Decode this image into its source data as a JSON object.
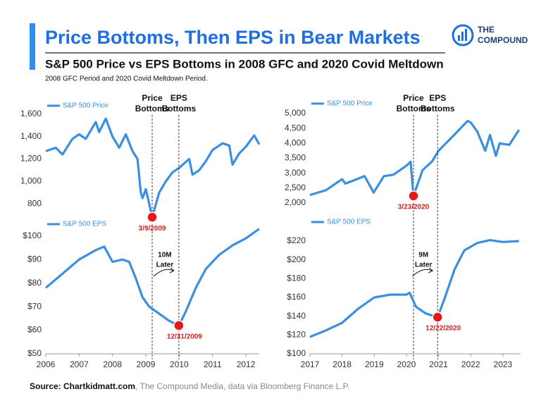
{
  "header": {
    "title": "Price Bottoms, Then EPS in Bear Markets",
    "subtitle": "S&P 500 Price vs EPS Bottoms in 2008 GFC and 2020 Covid Meltdown",
    "note": "2008 GFC Period and 2020 Covid Meltdown Period.",
    "logo": [
      "THE",
      "COMPOUND"
    ]
  },
  "source": {
    "bold": "Source: Chartkidmatt.com",
    "rest": ", The Compound Media, data via Bloomberg Finance L.P."
  },
  "chart_data": [
    {
      "type": "line",
      "x": [
        2006.0,
        2006.3,
        2006.5,
        2006.8,
        2007.0,
        2007.2,
        2007.5,
        2007.6,
        2007.8,
        2008.0,
        2008.2,
        2008.4,
        2008.6,
        2008.75,
        2008.85,
        2008.9,
        2009.0,
        2009.1,
        2009.19,
        2009.4,
        2009.6,
        2009.8,
        2010.0,
        2010.3,
        2010.4,
        2010.6,
        2010.8,
        2011.0,
        2011.3,
        2011.5,
        2011.6,
        2011.8,
        2012.0,
        2012.25,
        2012.4
      ],
      "series": [
        {
          "name": "S&P 500 Price",
          "color": "#3b8fe0",
          "values": [
            1270,
            1300,
            1240,
            1380,
            1420,
            1380,
            1530,
            1440,
            1560,
            1400,
            1300,
            1420,
            1270,
            1200,
            900,
            850,
            930,
            800,
            680,
            900,
            1000,
            1080,
            1120,
            1200,
            1060,
            1100,
            1180,
            1280,
            1340,
            1320,
            1150,
            1250,
            1310,
            1410,
            1330
          ]
        }
      ],
      "xlim": [
        2006,
        2012.4
      ],
      "ylim": [
        700,
        1675
      ],
      "yticks": [
        800,
        {
          "value": 1000,
          "label": "1,000"
        },
        {
          "value": 1200,
          "label": "1,200"
        },
        {
          "value": 1400,
          "label": "1,400"
        },
        {
          "value": 1600,
          "label": "1,600"
        }
      ],
      "marker": {
        "x": 2009.19,
        "y": 680,
        "label": "3/9/2009",
        "title": [
          "Price",
          "Bottoms"
        ]
      }
    },
    {
      "type": "line",
      "x": [
        2006.0,
        2006.5,
        2007.0,
        2007.5,
        2007.75,
        2008.0,
        2008.3,
        2008.5,
        2008.7,
        2008.9,
        2009.1,
        2009.4,
        2009.7,
        2009.99,
        2010.2,
        2010.5,
        2010.8,
        2011.2,
        2011.6,
        2012.0,
        2012.4
      ],
      "series": [
        {
          "name": "S&P 500 EPS",
          "color": "#3b8fe0",
          "values": [
            78,
            84,
            90,
            94,
            95.5,
            89,
            90,
            89,
            82,
            74,
            70,
            67,
            64,
            62,
            68,
            78,
            86,
            92,
            96,
            99,
            103
          ]
        }
      ],
      "xlim": [
        2006,
        2012.4
      ],
      "ylim": [
        50,
        105
      ],
      "xticks": [
        2006,
        2007,
        2008,
        2009,
        2010,
        2011,
        2012
      ],
      "yticks": [
        {
          "value": 50,
          "label": "$50"
        },
        {
          "value": 60,
          "label": "$60"
        },
        {
          "value": 70,
          "label": "$70"
        },
        {
          "value": 80,
          "label": "$80"
        },
        {
          "value": 90,
          "label": "$90"
        },
        {
          "value": 100,
          "label": "$100"
        }
      ],
      "marker": {
        "x": 2009.99,
        "y": 62,
        "label": "12/31/2009",
        "title": [
          "EPS",
          "Bottoms"
        ]
      },
      "note": [
        "10M",
        "Later"
      ]
    },
    {
      "type": "line",
      "x": [
        2017.0,
        2017.5,
        2018.0,
        2018.1,
        2018.7,
        2018.98,
        2019.3,
        2019.6,
        2020.0,
        2020.13,
        2020.22,
        2020.5,
        2020.8,
        2021.0,
        2021.5,
        2021.9,
        2022.0,
        2022.2,
        2022.45,
        2022.6,
        2022.78,
        2022.9,
        2023.2,
        2023.5
      ],
      "series": [
        {
          "name": "S&P 500 Price",
          "color": "#3b8fe0",
          "values": [
            2270,
            2430,
            2800,
            2650,
            2900,
            2350,
            2900,
            2950,
            3250,
            3380,
            2240,
            3100,
            3400,
            3750,
            4300,
            4750,
            4700,
            4400,
            3750,
            4280,
            3580,
            4000,
            3950,
            4450
          ]
        }
      ],
      "xlim": [
        2017,
        2023.55
      ],
      "ylim": [
        1600,
        5260
      ],
      "yticks": [
        {
          "value": 2000,
          "label": "2,000"
        },
        {
          "value": 2500,
          "label": "2,500"
        },
        {
          "value": 3000,
          "label": "3,000"
        },
        {
          "value": 3500,
          "label": "3,500"
        },
        {
          "value": 4000,
          "label": "4,000"
        },
        {
          "value": 4500,
          "label": "4,500"
        },
        {
          "value": 5000,
          "label": "5,000"
        }
      ],
      "marker": {
        "x": 2020.22,
        "y": 2240,
        "label": "3/23/2020",
        "title": [
          "Price",
          "Bottoms"
        ]
      }
    },
    {
      "type": "line",
      "x": [
        2017.0,
        2017.5,
        2018.0,
        2018.5,
        2019.0,
        2019.5,
        2020.0,
        2020.1,
        2020.3,
        2020.6,
        2020.97,
        2021.2,
        2021.5,
        2021.8,
        2022.2,
        2022.6,
        2023.0,
        2023.5
      ],
      "series": [
        {
          "name": "S&P 500 EPS",
          "color": "#3b8fe0",
          "values": [
            118,
            125,
            133,
            148,
            160,
            163,
            163,
            165,
            150,
            143,
            139,
            160,
            190,
            210,
            218,
            221,
            219,
            220
          ]
        }
      ],
      "xlim": [
        2017,
        2023.55
      ],
      "ylim": [
        100,
        238
      ],
      "xticks": [
        2017,
        2018,
        2019,
        2020,
        2021,
        2022,
        2023
      ],
      "yticks": [
        {
          "value": 100,
          "label": "$100"
        },
        {
          "value": 120,
          "label": "$120"
        },
        {
          "value": 140,
          "label": "$140"
        },
        {
          "value": 160,
          "label": "$160"
        },
        {
          "value": 180,
          "label": "$180"
        },
        {
          "value": 200,
          "label": "$200"
        },
        {
          "value": 220,
          "label": "$220"
        }
      ],
      "marker": {
        "x": 2020.97,
        "y": 139,
        "label": "12/22/2020",
        "title": [
          "EPS",
          "Bottoms"
        ]
      },
      "note": [
        "9M",
        "Later"
      ]
    }
  ]
}
